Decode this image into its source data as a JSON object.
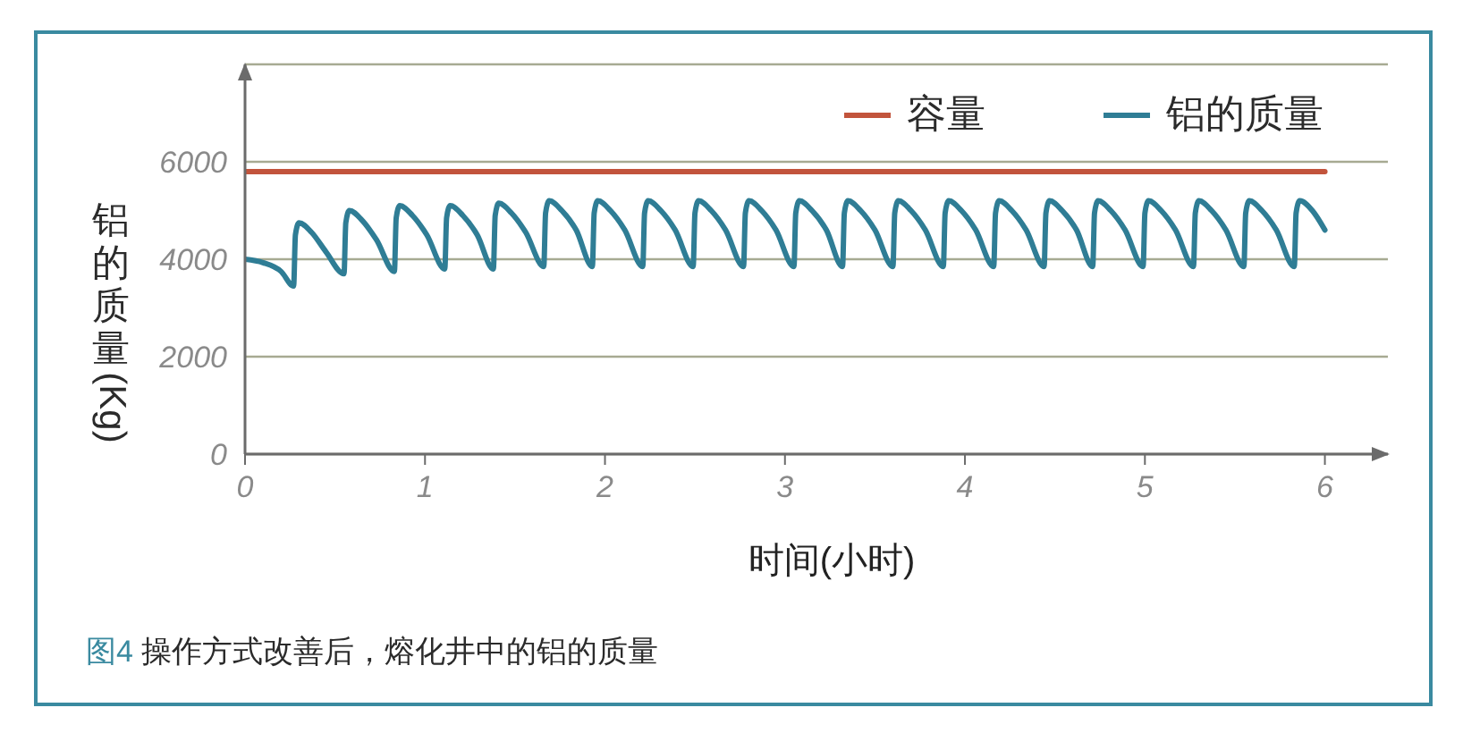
{
  "chart_data": {
    "type": "line",
    "xlabel": "时间(小时)",
    "ylabel": "铝的质量(Kg)",
    "annotations": [
      "图4 操作方式改善后，熔化井中的铝的质量"
    ],
    "series": [
      {
        "name": "容量",
        "color": "#c2543c",
        "x": [
          0,
          6
        ],
        "values": [
          5800,
          5800
        ]
      },
      {
        "name": "铝的质量",
        "color": "#2f7d95",
        "x": [
          0,
          0.1,
          0.2,
          0.27,
          0.28,
          0.3,
          0.37,
          0.45,
          0.55,
          0.56,
          0.58,
          0.65,
          0.73,
          0.83,
          0.84,
          0.86,
          0.93,
          1.01,
          1.11,
          1.12,
          1.14,
          1.21,
          1.29,
          1.38,
          1.39,
          1.41,
          1.48,
          1.56,
          1.66,
          1.67,
          1.69,
          1.76,
          1.84,
          1.93,
          1.94,
          1.96,
          2.03,
          2.11,
          2.21,
          2.22,
          2.24,
          2.31,
          2.39,
          2.49,
          2.5,
          2.52,
          2.59,
          2.67,
          2.77,
          2.78,
          2.8,
          2.87,
          2.95,
          3.05,
          3.06,
          3.08,
          3.15,
          3.23,
          3.32,
          3.33,
          3.35,
          3.42,
          3.5,
          3.6,
          3.61,
          3.63,
          3.7,
          3.78,
          3.88,
          3.89,
          3.91,
          3.98,
          4.06,
          4.16,
          4.17,
          4.19,
          4.26,
          4.34,
          4.44,
          4.45,
          4.47,
          4.54,
          4.62,
          4.71,
          4.72,
          4.74,
          4.81,
          4.89,
          4.99,
          5,
          5.02,
          5.09,
          5.17,
          5.27,
          5.28,
          5.3,
          5.37,
          5.45,
          5.55,
          5.56,
          5.58,
          5.65,
          5.73,
          5.83,
          5.84,
          5.86,
          5.93,
          6
        ],
        "values": [
          4000,
          3930,
          3750,
          3450,
          4500,
          4750,
          4550,
          4150,
          3700,
          4750,
          5000,
          4800,
          4400,
          3750,
          4850,
          5100,
          4900,
          4500,
          3800,
          4850,
          5100,
          4900,
          4500,
          3800,
          4900,
          5150,
          4950,
          4550,
          3850,
          4950,
          5200,
          5000,
          4600,
          3850,
          4950,
          5200,
          5000,
          4600,
          3850,
          4950,
          5200,
          5000,
          4600,
          3850,
          4950,
          5200,
          5000,
          4600,
          3850,
          4950,
          5200,
          5000,
          4600,
          3850,
          4950,
          5200,
          5000,
          4600,
          3850,
          4950,
          5200,
          5000,
          4600,
          3850,
          4950,
          5200,
          5000,
          4600,
          3850,
          4950,
          5200,
          5000,
          4600,
          3850,
          4950,
          5200,
          5000,
          4600,
          3850,
          4950,
          5200,
          5000,
          4600,
          3850,
          4950,
          5200,
          5000,
          4600,
          3850,
          4950,
          5200,
          5000,
          4600,
          3850,
          4950,
          5200,
          5000,
          4600,
          3850,
          4950,
          5200,
          5000,
          4600,
          3850,
          4950,
          5200,
          5000,
          4600
        ]
      }
    ],
    "xlim": [
      0,
      6.35
    ],
    "xticks": [
      0,
      1,
      2,
      3,
      4,
      5,
      6
    ],
    "ylim": [
      0,
      8000
    ],
    "yticks": [
      0,
      2000,
      4000,
      6000
    ],
    "grid": "y",
    "legend": "top right",
    "line_style": "solid"
  }
}
